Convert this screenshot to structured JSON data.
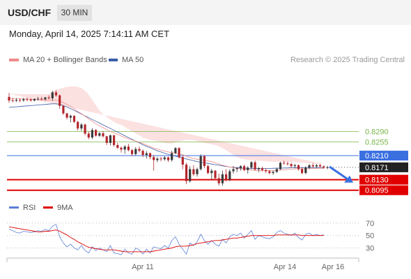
{
  "header": {
    "pair": "USD/CHF",
    "timeframe": "30 MIN"
  },
  "datetime": "Monday, April 14, 2025 7:14:11 AM CET",
  "legend": {
    "ma20_bb": "MA 20 + Bollinger Bands",
    "ma50": "MA 50",
    "credit": "Research © 2025 Trading Central",
    "rsi": "RSI",
    "ma9": "9MA"
  },
  "colors": {
    "candle_up": "#3a3a3a",
    "candle_down": "#b3262c",
    "ma20": "#f08a8a",
    "ma50": "#3a5da8",
    "band_fill": "#fcdcdc",
    "resistance": "#7ab648",
    "pivot": "#3a6fe0",
    "support": "#e00000",
    "last_price": "#222222",
    "rsi": "#5b7fd6",
    "rsi_ma": "#dd0000"
  },
  "chart_data": [
    {
      "type": "candlestick",
      "symbol": "USD/CHF",
      "ylim": [
        0.8055,
        0.8495
      ],
      "x_ticks": [
        "Apr 11",
        "Apr 14",
        "Apr 16"
      ],
      "levels": [
        {
          "value": 0.829,
          "label": "0.8290",
          "kind": "resistance"
        },
        {
          "value": 0.8255,
          "label": "0.8255",
          "kind": "resistance"
        },
        {
          "value": 0.821,
          "label": "0.8210",
          "kind": "pivot"
        },
        {
          "value": 0.8171,
          "label": "0.8171",
          "kind": "last_price"
        },
        {
          "value": 0.813,
          "label": "0.8130",
          "kind": "support"
        },
        {
          "value": 0.8095,
          "label": "0.8095",
          "kind": "support"
        }
      ],
      "forecast_arrow": {
        "from": 0.8173,
        "to": 0.8125,
        "direction": "down"
      },
      "ohlc": [
        [
          0.8405,
          0.8418,
          0.8385,
          0.8393
        ],
        [
          0.8393,
          0.8402,
          0.8387,
          0.8392
        ],
        [
          0.8392,
          0.8401,
          0.8388,
          0.8395
        ],
        [
          0.8395,
          0.8399,
          0.8387,
          0.8393
        ],
        [
          0.8393,
          0.8402,
          0.8389,
          0.8397
        ],
        [
          0.8397,
          0.8403,
          0.8391,
          0.8396
        ],
        [
          0.8396,
          0.8401,
          0.8389,
          0.8393
        ],
        [
          0.8393,
          0.84,
          0.839,
          0.8398
        ],
        [
          0.8398,
          0.8405,
          0.8393,
          0.8399
        ],
        [
          0.8399,
          0.8405,
          0.8393,
          0.8397
        ],
        [
          0.8397,
          0.8405,
          0.8392,
          0.8403
        ],
        [
          0.8403,
          0.841,
          0.8397,
          0.84
        ],
        [
          0.84,
          0.8425,
          0.8392,
          0.842
        ],
        [
          0.842,
          0.8427,
          0.8405,
          0.841
        ],
        [
          0.841,
          0.8413,
          0.8365,
          0.8375
        ],
        [
          0.8375,
          0.8378,
          0.8345,
          0.835
        ],
        [
          0.835,
          0.8352,
          0.833,
          0.8336
        ],
        [
          0.8336,
          0.8346,
          0.832,
          0.8342
        ],
        [
          0.8342,
          0.8344,
          0.8318,
          0.8322
        ],
        [
          0.8322,
          0.8325,
          0.8293,
          0.83
        ],
        [
          0.83,
          0.8318,
          0.8292,
          0.8313
        ],
        [
          0.8313,
          0.8316,
          0.8278,
          0.8283
        ],
        [
          0.8283,
          0.829,
          0.8264,
          0.827
        ],
        [
          0.827,
          0.8301,
          0.8265,
          0.8295
        ],
        [
          0.8295,
          0.8298,
          0.8273,
          0.8276
        ],
        [
          0.8276,
          0.8288,
          0.8272,
          0.8284
        ],
        [
          0.8284,
          0.8291,
          0.827,
          0.8274
        ],
        [
          0.8274,
          0.8276,
          0.8245,
          0.8252
        ],
        [
          0.8252,
          0.828,
          0.8244,
          0.8277
        ],
        [
          0.8277,
          0.8279,
          0.824,
          0.8245
        ],
        [
          0.8245,
          0.8252,
          0.8232,
          0.8236
        ],
        [
          0.8236,
          0.824,
          0.822,
          0.823
        ],
        [
          0.823,
          0.8245,
          0.8216,
          0.824
        ],
        [
          0.824,
          0.8249,
          0.8224,
          0.8228
        ],
        [
          0.8228,
          0.8232,
          0.8208,
          0.8215
        ],
        [
          0.8215,
          0.8238,
          0.821,
          0.8232
        ],
        [
          0.8232,
          0.824,
          0.822,
          0.8226
        ],
        [
          0.8226,
          0.823,
          0.8205,
          0.8212
        ],
        [
          0.8212,
          0.8225,
          0.82,
          0.8218
        ],
        [
          0.8218,
          0.822,
          0.8198,
          0.8205
        ],
        [
          0.8205,
          0.8212,
          0.816,
          0.8195
        ],
        [
          0.8195,
          0.8205,
          0.8188,
          0.82
        ],
        [
          0.82,
          0.8206,
          0.8191,
          0.8198
        ],
        [
          0.8198,
          0.8208,
          0.8193,
          0.8204
        ],
        [
          0.8204,
          0.8207,
          0.8189,
          0.8195
        ],
        [
          0.8195,
          0.8226,
          0.819,
          0.8218
        ],
        [
          0.8218,
          0.8238,
          0.8215,
          0.8235
        ],
        [
          0.8235,
          0.8238,
          0.82,
          0.8205
        ],
        [
          0.8205,
          0.821,
          0.8165,
          0.818
        ],
        [
          0.818,
          0.8186,
          0.8115,
          0.8125
        ],
        [
          0.8125,
          0.8175,
          0.812,
          0.8165
        ],
        [
          0.8165,
          0.8178,
          0.8142,
          0.8148
        ],
        [
          0.8148,
          0.817,
          0.814,
          0.8165
        ],
        [
          0.8165,
          0.8214,
          0.816,
          0.8208
        ],
        [
          0.8208,
          0.8212,
          0.8168,
          0.8175
        ],
        [
          0.8175,
          0.818,
          0.8148,
          0.8152
        ],
        [
          0.8152,
          0.8166,
          0.813,
          0.816
        ],
        [
          0.816,
          0.8162,
          0.8128,
          0.8135
        ],
        [
          0.8135,
          0.815,
          0.811,
          0.8118
        ],
        [
          0.8118,
          0.816,
          0.811,
          0.8148
        ],
        [
          0.8148,
          0.8165,
          0.8124,
          0.813
        ],
        [
          0.813,
          0.8165,
          0.8125,
          0.8158
        ],
        [
          0.8158,
          0.8175,
          0.815,
          0.8165
        ],
        [
          0.8165,
          0.8172,
          0.8155,
          0.8168
        ],
        [
          0.8168,
          0.8178,
          0.816,
          0.8175
        ],
        [
          0.8175,
          0.818,
          0.8158,
          0.8162
        ],
        [
          0.8162,
          0.8175,
          0.815,
          0.817
        ],
        [
          0.817,
          0.8192,
          0.8165,
          0.8188
        ],
        [
          0.8188,
          0.8193,
          0.816,
          0.8164
        ],
        [
          0.8164,
          0.8172,
          0.8155,
          0.8168
        ],
        [
          0.8168,
          0.8173,
          0.8158,
          0.8162
        ],
        [
          0.8162,
          0.8168,
          0.8152,
          0.8158
        ],
        [
          0.8158,
          0.8163,
          0.8148,
          0.8152
        ],
        [
          0.8152,
          0.816,
          0.8146,
          0.8156
        ],
        [
          0.8156,
          0.817,
          0.8152,
          0.8165
        ],
        [
          0.8165,
          0.819,
          0.8162,
          0.8186
        ],
        [
          0.8186,
          0.8193,
          0.818,
          0.8184
        ],
        [
          0.8184,
          0.819,
          0.8177,
          0.8182
        ],
        [
          0.8182,
          0.8186,
          0.817,
          0.8175
        ],
        [
          0.8175,
          0.8183,
          0.8168,
          0.8178
        ],
        [
          0.8178,
          0.8181,
          0.816,
          0.8165
        ],
        [
          0.8165,
          0.8172,
          0.8148,
          0.8152
        ],
        [
          0.8152,
          0.8175,
          0.8148,
          0.817
        ],
        [
          0.817,
          0.8182,
          0.8165,
          0.8178
        ],
        [
          0.8178,
          0.8185,
          0.817,
          0.8174
        ],
        [
          0.8174,
          0.8182,
          0.8168,
          0.8178
        ],
        [
          0.8178,
          0.8183,
          0.817,
          0.8174
        ],
        [
          0.8174,
          0.8178,
          0.8166,
          0.817
        ],
        [
          0.817,
          0.8176,
          0.8165,
          0.8171
        ]
      ],
      "ma20": [
        0.8398,
        0.8399,
        0.8399,
        0.8399,
        0.8399,
        0.8398,
        0.8397,
        0.8396,
        0.8395,
        0.8395,
        0.8395,
        0.8394,
        0.8394,
        0.8394,
        0.8391,
        0.8386,
        0.838,
        0.8373,
        0.8365,
        0.8356,
        0.8349,
        0.8341,
        0.8332,
        0.8324,
        0.8316,
        0.8309,
        0.8303,
        0.8296,
        0.829,
        0.8285,
        0.828,
        0.8275,
        0.827,
        0.8266,
        0.8262,
        0.8258,
        0.8254,
        0.825,
        0.8245,
        0.824,
        0.8235,
        0.8232,
        0.8228,
        0.8225,
        0.8222,
        0.822,
        0.8218,
        0.8216,
        0.8213,
        0.8208,
        0.8204,
        0.82,
        0.8198,
        0.8196,
        0.8194,
        0.8192,
        0.819,
        0.8186,
        0.8182,
        0.8178,
        0.8175,
        0.8172,
        0.817,
        0.8168,
        0.8166,
        0.8164,
        0.8163,
        0.8162,
        0.8161,
        0.816,
        0.816,
        0.816,
        0.816,
        0.816,
        0.8161,
        0.8162,
        0.8163,
        0.8164,
        0.8165,
        0.8166,
        0.8166,
        0.8166,
        0.8166,
        0.8167,
        0.8167,
        0.8168,
        0.8168,
        0.8168
      ],
      "bb_upper": [
        0.8415,
        0.8415,
        0.8415,
        0.8414,
        0.8414,
        0.8414,
        0.8414,
        0.8414,
        0.8414,
        0.8414,
        0.8414,
        0.8414,
        0.8424,
        0.8428,
        0.8432,
        0.8435,
        0.8438,
        0.844,
        0.844,
        0.8438,
        0.8434,
        0.8425,
        0.8412,
        0.8395,
        0.8378,
        0.836,
        0.8348,
        0.8338,
        0.833,
        0.8322,
        0.8316,
        0.8312,
        0.8305,
        0.8298,
        0.829,
        0.8283,
        0.8277,
        0.827,
        0.8266,
        0.8262,
        0.826,
        0.8258,
        0.8255,
        0.8252,
        0.825,
        0.825,
        0.8253,
        0.8258,
        0.826,
        0.8262,
        0.8262,
        0.8261,
        0.8258,
        0.8255,
        0.8252,
        0.825,
        0.8248,
        0.8245,
        0.8241,
        0.8235,
        0.8228,
        0.822,
        0.8212,
        0.8205,
        0.82,
        0.8198,
        0.8196,
        0.8195,
        0.8194,
        0.8193,
        0.8192,
        0.8191,
        0.819,
        0.819,
        0.819,
        0.819,
        0.8189,
        0.8189,
        0.8188,
        0.8188,
        0.8187,
        0.8186,
        0.8185,
        0.8185,
        0.8184,
        0.8183,
        0.8182,
        0.8182
      ],
      "bb_lower": [
        0.838,
        0.8382,
        0.8382,
        0.8383,
        0.8383,
        0.8382,
        0.838,
        0.8378,
        0.8376,
        0.8376,
        0.8376,
        0.8374,
        0.8364,
        0.836,
        0.835,
        0.8337,
        0.8322,
        0.8306,
        0.829,
        0.8275,
        0.8264,
        0.8257,
        0.8252,
        0.8253,
        0.8254,
        0.8258,
        0.8258,
        0.8254,
        0.825,
        0.8248,
        0.8244,
        0.8238,
        0.8234,
        0.8234,
        0.8234,
        0.8233,
        0.8231,
        0.823,
        0.8224,
        0.8218,
        0.821,
        0.8206,
        0.8201,
        0.8198,
        0.8194,
        0.819,
        0.8183,
        0.8174,
        0.8166,
        0.8154,
        0.8146,
        0.8139,
        0.8138,
        0.8137,
        0.8136,
        0.8134,
        0.8132,
        0.8127,
        0.8123,
        0.8121,
        0.8122,
        0.8124,
        0.8128,
        0.8131,
        0.8132,
        0.813,
        0.813,
        0.8129,
        0.8128,
        0.8127,
        0.8128,
        0.8129,
        0.813,
        0.813,
        0.8132,
        0.8134,
        0.8137,
        0.8139,
        0.8142,
        0.8144,
        0.8145,
        0.8146,
        0.8147,
        0.8149,
        0.815,
        0.8153,
        0.8154,
        0.8154
      ],
      "ma50": [
        0.837,
        0.8371,
        0.8372,
        0.8373,
        0.8374,
        0.8375,
        0.8376,
        0.8377,
        0.8378,
        0.8379,
        0.838,
        0.8381,
        0.8382,
        0.8382,
        0.838,
        0.8376,
        0.8371,
        0.8366,
        0.836,
        0.8354,
        0.8348,
        0.8342,
        0.8336,
        0.833,
        0.8324,
        0.8318,
        0.8312,
        0.8306,
        0.83,
        0.8294,
        0.8288,
        0.8282,
        0.8276,
        0.827,
        0.8264,
        0.8258,
        0.8252,
        0.8246,
        0.8241,
        0.8236,
        0.8231,
        0.8226,
        0.8222,
        0.8218,
        0.8214,
        0.8211,
        0.8208,
        0.8205,
        0.8202,
        0.8199,
        0.8196,
        0.8193,
        0.819,
        0.8188,
        0.8186,
        0.8184,
        0.8182,
        0.818,
        0.8178,
        0.8176,
        0.8174,
        0.8172,
        0.8171,
        0.817,
        0.8169,
        0.8168,
        0.8168,
        0.8167,
        0.8167,
        0.8167,
        0.8167,
        0.8167,
        0.8167,
        0.8168,
        0.8168,
        0.8168,
        0.8169,
        0.8169,
        0.817,
        0.817,
        0.817,
        0.817,
        0.817,
        0.817,
        0.817,
        0.817,
        0.817,
        0.817
      ]
    },
    {
      "type": "line",
      "name": "RSI panel",
      "ylim": [
        16,
        80
      ],
      "y_ticks": [
        70,
        50,
        30
      ],
      "series": [
        {
          "name": "RSI",
          "values": [
            60,
            58,
            55,
            54,
            57,
            56,
            55,
            56,
            58,
            57,
            60,
            58,
            65,
            68,
            48,
            38,
            32,
            36,
            30,
            27,
            34,
            26,
            22,
            32,
            26,
            30,
            27,
            24,
            34,
            22,
            21,
            19,
            28,
            22,
            20,
            30,
            27,
            20,
            28,
            22,
            32,
            30,
            29,
            34,
            30,
            42,
            48,
            36,
            28,
            20,
            38,
            34,
            40,
            52,
            42,
            36,
            42,
            36,
            33,
            44,
            38,
            48,
            52,
            50,
            54,
            46,
            52,
            58,
            44,
            50,
            48,
            46,
            45,
            48,
            55,
            58,
            54,
            52,
            50,
            54,
            47,
            43,
            52,
            54,
            50,
            52,
            50,
            51
          ]
        },
        {
          "name": "9MA",
          "values": [
            64,
            63,
            62,
            61,
            60,
            59,
            58,
            57,
            56,
            56,
            57,
            57,
            58,
            59,
            57,
            54,
            51,
            47,
            44,
            40,
            37,
            34,
            31,
            30,
            29,
            28,
            27,
            27,
            27,
            27,
            26,
            25,
            24,
            24,
            24,
            24,
            24,
            24,
            24,
            24,
            25,
            26,
            27,
            28,
            29,
            30,
            32,
            33,
            33,
            33,
            34,
            35,
            37,
            38,
            39,
            40,
            41,
            42,
            42,
            43,
            44,
            45,
            46,
            46,
            47,
            48,
            49,
            50,
            50,
            50,
            50,
            50,
            50,
            50,
            51,
            51,
            51,
            51,
            51,
            51,
            51,
            50,
            50,
            50,
            50,
            50,
            50,
            50
          ]
        }
      ]
    }
  ]
}
